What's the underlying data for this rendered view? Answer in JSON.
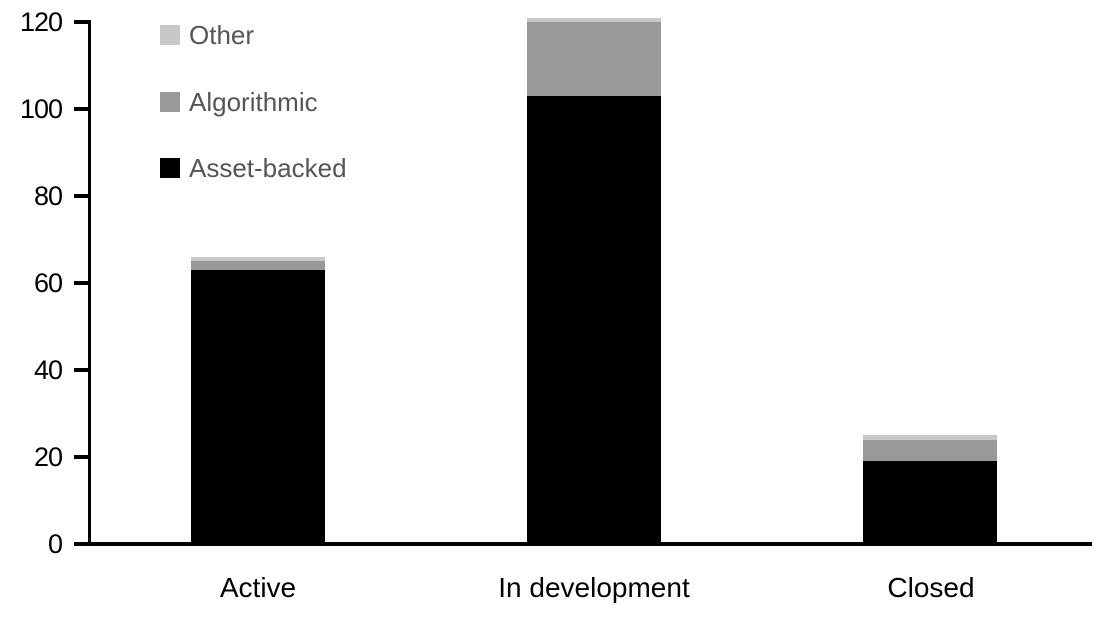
{
  "chart_data": {
    "type": "bar",
    "stacked": true,
    "title": "",
    "xlabel": "",
    "ylabel": "",
    "categories": [
      "Active",
      "In development",
      "Closed"
    ],
    "series": [
      {
        "name": "Asset-backed",
        "color": "#000000",
        "values": [
          63,
          103,
          19
        ]
      },
      {
        "name": "Algorithmic",
        "color": "#999999",
        "values": [
          2,
          17,
          5
        ]
      },
      {
        "name": "Other",
        "color": "#c8c8c8",
        "values": [
          1,
          1,
          1
        ]
      }
    ],
    "totals": [
      66,
      121,
      25
    ],
    "ylim": [
      0,
      120
    ],
    "yticks": [
      0,
      20,
      40,
      60,
      80,
      100,
      120
    ],
    "grid": false,
    "legend": {
      "position": "top-left",
      "order": [
        "Other",
        "Algorithmic",
        "Asset-backed"
      ]
    }
  },
  "colors": {
    "background": "#ffffff",
    "axis": "#000000",
    "axis_tick_label": "#000000",
    "x_category_label": "#000000",
    "legend_text": "#555555"
  }
}
